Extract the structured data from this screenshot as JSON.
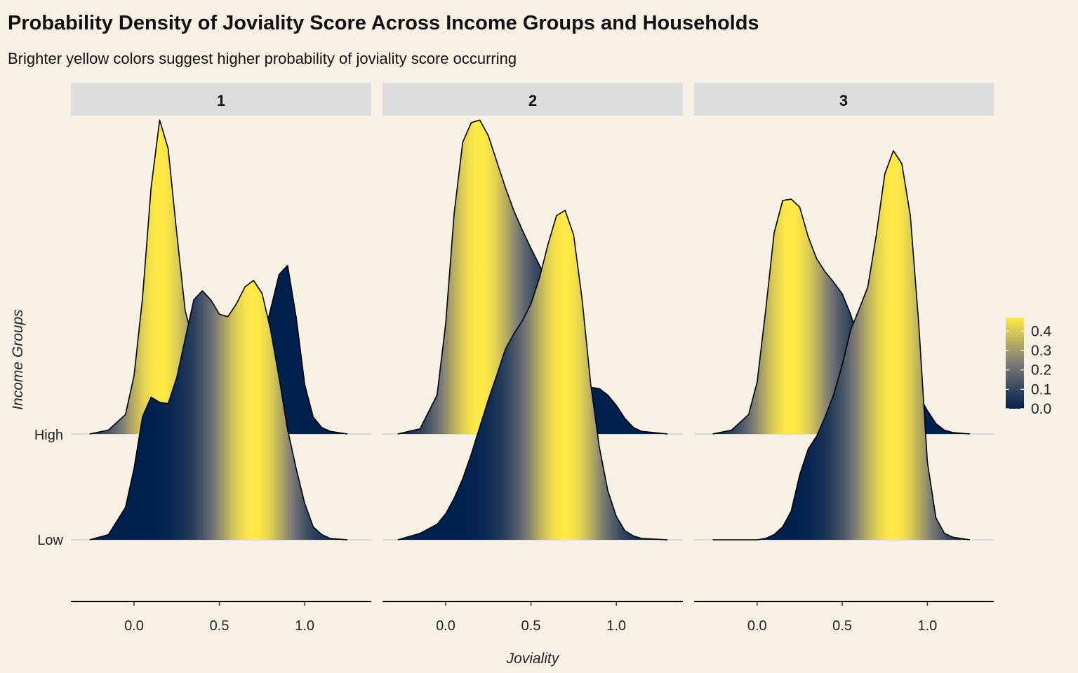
{
  "chart_data": {
    "type": "ridgeline",
    "title": "Probability Density of Joviality Score Across Income Groups and Households",
    "subtitle": "Brighter yellow colors suggest higher probability of joviality score occurring",
    "xlabel": "Joviality",
    "ylabel": "Income Groups",
    "facet_labels": [
      "1",
      "2",
      "3"
    ],
    "y_categories": [
      "Low",
      "High"
    ],
    "xlim": [
      -0.37,
      1.39
    ],
    "x_ticks": [
      0.0,
      0.5,
      1.0
    ],
    "x_tick_labels": [
      "0.0",
      "0.5",
      "1.0"
    ],
    "legend": {
      "position": "right",
      "ticks": [
        0.0,
        0.1,
        0.2,
        0.3,
        0.4
      ],
      "tick_labels": [
        "0.0",
        "0.1",
        "0.2",
        "0.3",
        "0.4"
      ],
      "range": [
        0.0,
        0.47
      ],
      "low_color": "#00204D",
      "mid_color": "#7C7B78",
      "high_color": "#FFEA46"
    },
    "colors": {
      "background": "#F7F1E5",
      "strip": "#DDDDDD",
      "outline": "#000000"
    },
    "panels": [
      {
        "facet": "1",
        "series": [
          {
            "group": "High",
            "x": [
              -0.26,
              -0.15,
              -0.05,
              0.0,
              0.05,
              0.1,
              0.15,
              0.2,
              0.25,
              0.3,
              0.35,
              0.4,
              0.45,
              0.5,
              0.55,
              0.6,
              0.65,
              0.7,
              0.75,
              0.8,
              0.85,
              0.9,
              0.95,
              1.0,
              1.05,
              1.1,
              1.15,
              1.25
            ],
            "density": [
              0.0,
              0.03,
              0.15,
              0.45,
              1.05,
              1.9,
              2.42,
              2.2,
              1.55,
              0.95,
              0.7,
              0.64,
              0.6,
              0.62,
              0.7,
              0.66,
              0.5,
              0.48,
              0.7,
              0.96,
              1.23,
              1.3,
              0.9,
              0.38,
              0.13,
              0.05,
              0.02,
              0.0
            ]
          },
          {
            "group": "Low",
            "x": [
              -0.26,
              -0.15,
              -0.05,
              0.0,
              0.05,
              0.1,
              0.15,
              0.2,
              0.25,
              0.3,
              0.35,
              0.4,
              0.45,
              0.5,
              0.55,
              0.6,
              0.65,
              0.7,
              0.75,
              0.8,
              0.85,
              0.9,
              0.95,
              1.0,
              1.05,
              1.1,
              1.15,
              1.25
            ],
            "density": [
              0.0,
              0.04,
              0.25,
              0.55,
              0.95,
              1.1,
              1.06,
              1.05,
              1.25,
              1.55,
              1.85,
              1.92,
              1.85,
              1.74,
              1.72,
              1.82,
              1.95,
              2.0,
              1.9,
              1.62,
              1.25,
              0.85,
              0.55,
              0.28,
              0.1,
              0.04,
              0.01,
              0.0
            ]
          }
        ]
      },
      {
        "facet": "2",
        "series": [
          {
            "group": "High",
            "x": [
              -0.28,
              -0.15,
              -0.05,
              0.0,
              0.05,
              0.1,
              0.15,
              0.2,
              0.25,
              0.3,
              0.35,
              0.4,
              0.45,
              0.5,
              0.55,
              0.6,
              0.65,
              0.7,
              0.75,
              0.8,
              0.85,
              0.9,
              0.95,
              1.0,
              1.05,
              1.1,
              1.15,
              1.3
            ],
            "density": [
              0.0,
              0.04,
              0.3,
              0.85,
              1.7,
              2.25,
              2.4,
              2.42,
              2.3,
              2.1,
              1.9,
              1.72,
              1.57,
              1.43,
              1.3,
              1.17,
              1.02,
              0.85,
              0.65,
              0.45,
              0.36,
              0.35,
              0.3,
              0.22,
              0.12,
              0.05,
              0.02,
              0.0
            ]
          },
          {
            "group": "Low",
            "x": [
              -0.28,
              -0.15,
              -0.05,
              0.0,
              0.05,
              0.1,
              0.15,
              0.2,
              0.25,
              0.3,
              0.35,
              0.4,
              0.45,
              0.5,
              0.55,
              0.6,
              0.65,
              0.7,
              0.75,
              0.8,
              0.85,
              0.9,
              0.95,
              1.0,
              1.05,
              1.1,
              1.15,
              1.3
            ],
            "density": [
              0.0,
              0.05,
              0.12,
              0.2,
              0.32,
              0.47,
              0.66,
              0.87,
              1.08,
              1.27,
              1.47,
              1.59,
              1.69,
              1.82,
              2.02,
              2.28,
              2.5,
              2.54,
              2.35,
              1.85,
              1.2,
              0.72,
              0.38,
              0.18,
              0.07,
              0.03,
              0.01,
              0.0
            ]
          }
        ]
      },
      {
        "facet": "3",
        "series": [
          {
            "group": "High",
            "x": [
              -0.26,
              -0.15,
              -0.05,
              0.0,
              0.05,
              0.1,
              0.15,
              0.2,
              0.25,
              0.3,
              0.35,
              0.4,
              0.45,
              0.5,
              0.55,
              0.6,
              0.65,
              0.7,
              0.75,
              0.8,
              0.85,
              0.9,
              0.95,
              1.0,
              1.05,
              1.1,
              1.15,
              1.25
            ],
            "density": [
              0.0,
              0.03,
              0.15,
              0.4,
              0.95,
              1.55,
              1.8,
              1.81,
              1.75,
              1.52,
              1.35,
              1.25,
              1.17,
              1.08,
              0.92,
              0.7,
              0.48,
              0.32,
              0.28,
              0.35,
              0.4,
              0.38,
              0.3,
              0.18,
              0.08,
              0.03,
              0.01,
              0.0
            ]
          },
          {
            "group": "Low",
            "x": [
              -0.26,
              -0.15,
              -0.05,
              0.0,
              0.05,
              0.1,
              0.15,
              0.2,
              0.25,
              0.3,
              0.35,
              0.4,
              0.45,
              0.5,
              0.55,
              0.6,
              0.65,
              0.7,
              0.75,
              0.8,
              0.85,
              0.9,
              0.95,
              1.0,
              1.05,
              1.1,
              1.15,
              1.25
            ],
            "density": [
              0.0,
              0.0,
              0.0,
              0.0,
              0.01,
              0.04,
              0.1,
              0.22,
              0.5,
              0.7,
              0.8,
              0.95,
              1.12,
              1.35,
              1.62,
              1.78,
              1.95,
              2.35,
              2.82,
              3.0,
              2.9,
              2.5,
              1.65,
              0.6,
              0.17,
              0.05,
              0.02,
              0.0
            ]
          }
        ]
      }
    ]
  }
}
